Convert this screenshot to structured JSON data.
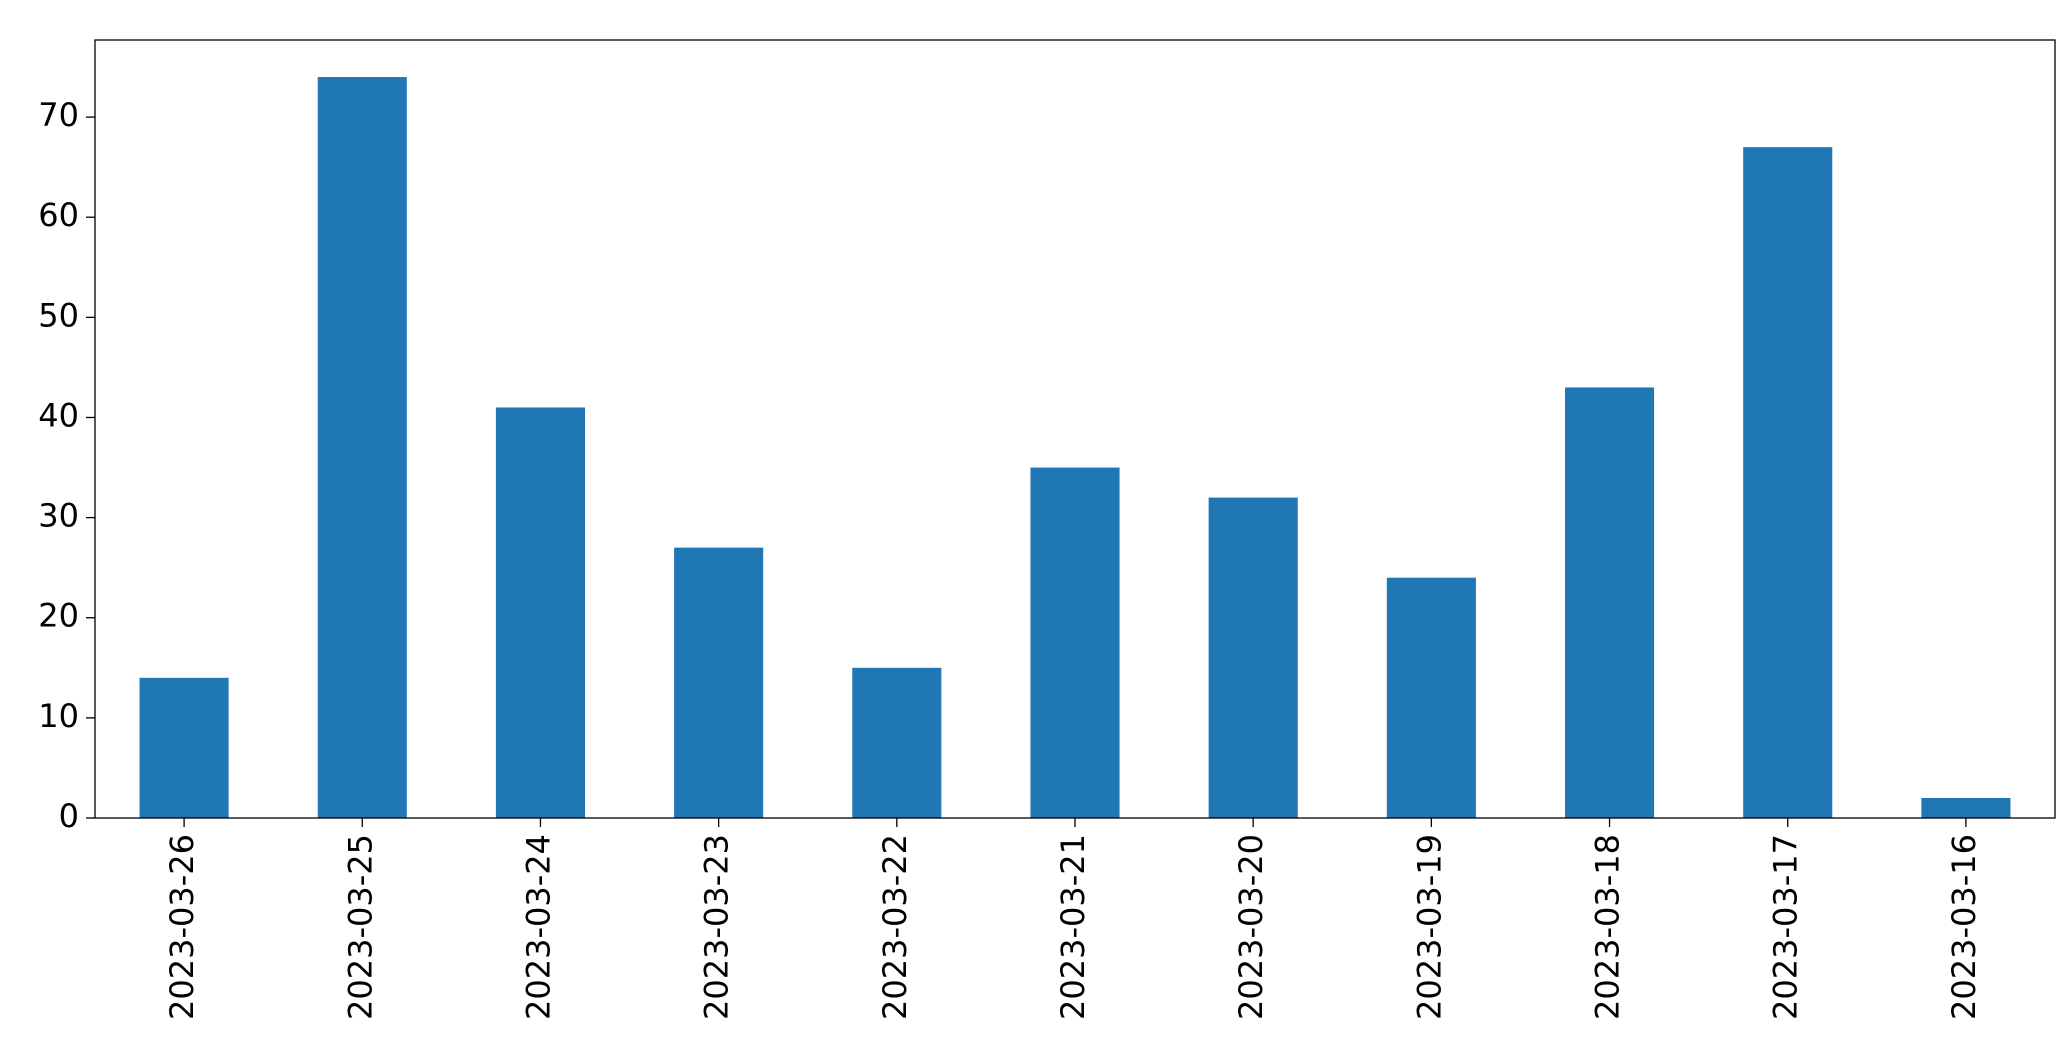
{
  "chart_data": {
    "type": "bar",
    "categories": [
      "2023-03-26",
      "2023-03-25",
      "2023-03-24",
      "2023-03-23",
      "2023-03-22",
      "2023-03-21",
      "2023-03-20",
      "2023-03-19",
      "2023-03-18",
      "2023-03-17",
      "2023-03-16"
    ],
    "values": [
      14,
      74,
      41,
      27,
      15,
      35,
      32,
      24,
      43,
      67,
      2
    ],
    "color": "#1f77b4",
    "ylim": [
      0,
      77.7
    ],
    "yticks": [
      0,
      10,
      20,
      30,
      40,
      50,
      60,
      70
    ],
    "grid": false
  }
}
